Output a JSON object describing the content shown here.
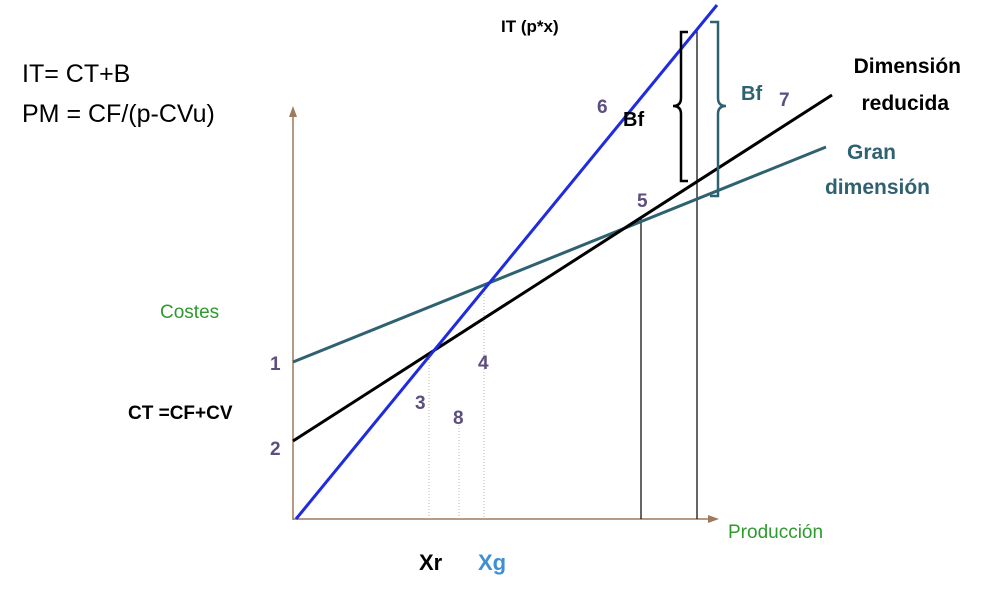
{
  "formulas": {
    "line1": "IT= CT+B",
    "line2": "PM = CF/(p-CVu)"
  },
  "axes": {
    "y_label": "Costes",
    "x_label": "Producción"
  },
  "labels": {
    "it_line": "IT (p*x)",
    "ct": "CT =CF+CV",
    "small_dim": "Dimensión\nreducida",
    "large_dim": "Gran\ndimensión",
    "bf_black": "Bf",
    "bf_teal": "Bf",
    "xr": "Xr",
    "xg": "Xg"
  },
  "markers": {
    "m1": "1",
    "m2": "2",
    "m3": "3",
    "m4": "4",
    "m5": "5",
    "m6": "6",
    "m7": "7",
    "m8": "8"
  },
  "colors": {
    "axis": "#a0785a",
    "it_line": "#1f2be0",
    "small_dim": "#000000",
    "large_dim": "#2e6270",
    "green_text": "#2e9a2e",
    "marker_text": "#5c4e7e",
    "xg_text": "#3f8fd6"
  }
}
